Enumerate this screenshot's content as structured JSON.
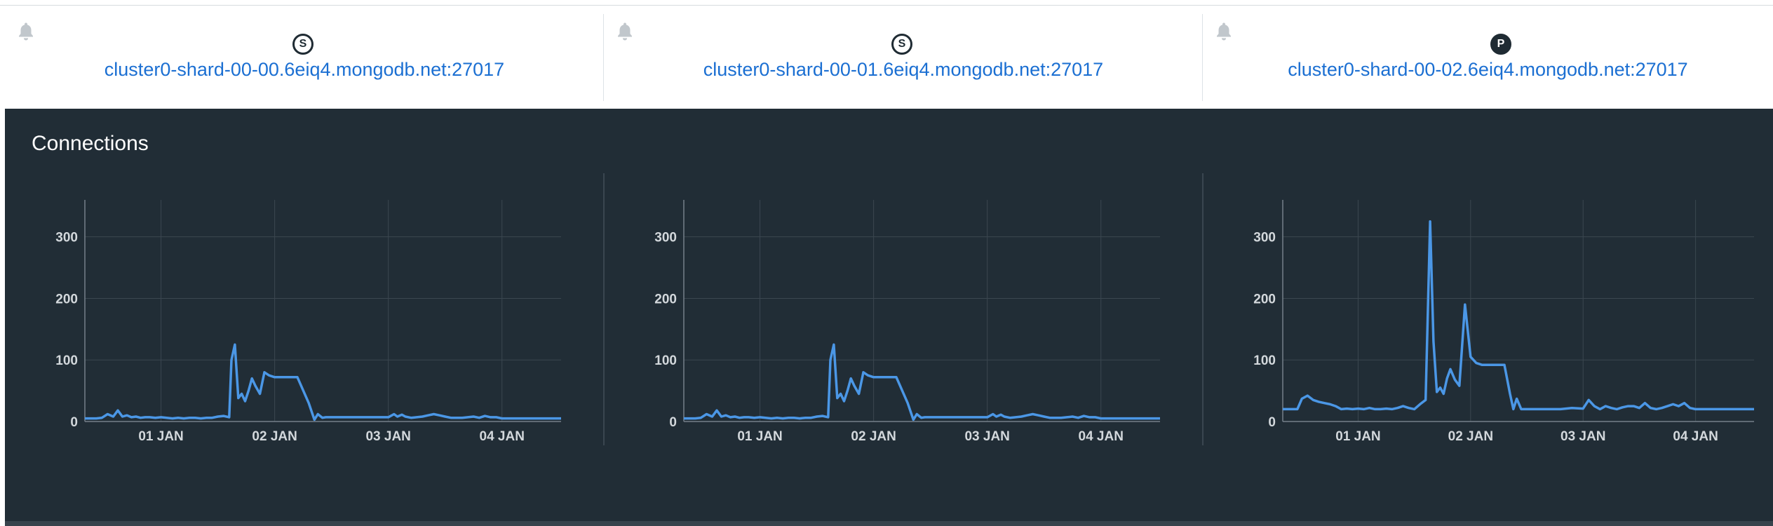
{
  "hosts": [
    {
      "role_letter": "S",
      "hostname": "cluster0-shard-00-00.6eiq4.mongodb.net:27017"
    },
    {
      "role_letter": "S",
      "hostname": "cluster0-shard-00-01.6eiq4.mongodb.net:27017"
    },
    {
      "role_letter": "P",
      "hostname": "cluster0-shard-00-02.6eiq4.mongodb.net:27017"
    }
  ],
  "section_title": "Connections",
  "colors": {
    "line": "#4b97e6",
    "background": "#212d36",
    "grid": "#3b4750",
    "link": "#1b6fd2"
  },
  "icons": {
    "alert": "bell-icon"
  },
  "chart_data": [
    {
      "type": "line",
      "title": "",
      "xlabel": "",
      "ylabel": "",
      "x_ticks": [
        "01 JAN",
        "02 JAN",
        "03 JAN",
        "04 JAN"
      ],
      "x_tick_positions": [
        1,
        2,
        3,
        4
      ],
      "xlim": [
        0.33,
        4.52
      ],
      "y_ticks": [
        0,
        100,
        200,
        300
      ],
      "ylim": [
        0,
        360
      ],
      "grid": true,
      "series": [
        {
          "x": [
            0.33,
            0.38,
            0.43,
            0.48,
            0.53,
            0.58,
            0.62,
            0.66,
            0.7,
            0.74,
            0.78,
            0.82,
            0.86,
            0.9,
            0.95,
            1.0,
            1.05,
            1.1,
            1.15,
            1.2,
            1.25,
            1.3,
            1.35,
            1.4,
            1.45,
            1.5,
            1.55,
            1.6,
            1.62,
            1.65,
            1.68,
            1.71,
            1.74,
            1.77,
            1.8,
            1.83,
            1.87,
            1.91,
            1.95,
            2.0,
            2.05,
            2.1,
            2.15,
            2.2,
            2.3,
            2.35,
            2.38,
            2.42,
            2.45,
            2.5,
            2.6,
            2.7,
            2.8,
            2.9,
            3.0,
            3.05,
            3.08,
            3.12,
            3.15,
            3.2,
            3.25,
            3.3,
            3.35,
            3.4,
            3.45,
            3.5,
            3.55,
            3.6,
            3.65,
            3.7,
            3.75,
            3.8,
            3.85,
            3.9,
            3.95,
            4.0,
            4.05,
            4.1,
            4.2,
            4.3,
            4.4,
            4.52
          ],
          "y": [
            5,
            5,
            5,
            6,
            12,
            8,
            18,
            8,
            10,
            7,
            8,
            6,
            7,
            7,
            6,
            7,
            6,
            5,
            6,
            5,
            6,
            6,
            5,
            6,
            6,
            8,
            9,
            7,
            100,
            125,
            38,
            45,
            33,
            50,
            70,
            58,
            45,
            80,
            75,
            72,
            72,
            72,
            72,
            72,
            30,
            3,
            12,
            6,
            7,
            7,
            7,
            7,
            7,
            7,
            7,
            12,
            8,
            11,
            8,
            6,
            7,
            8,
            10,
            12,
            10,
            8,
            6,
            6,
            6,
            7,
            8,
            6,
            9,
            7,
            7,
            5,
            5,
            5,
            5,
            5,
            5,
            5
          ]
        }
      ]
    },
    {
      "type": "line",
      "title": "",
      "xlabel": "",
      "ylabel": "",
      "x_ticks": [
        "01 JAN",
        "02 JAN",
        "03 JAN",
        "04 JAN"
      ],
      "x_tick_positions": [
        1,
        2,
        3,
        4
      ],
      "xlim": [
        0.33,
        4.52
      ],
      "y_ticks": [
        0,
        100,
        200,
        300
      ],
      "ylim": [
        0,
        360
      ],
      "grid": true,
      "series": [
        {
          "x": [
            0.33,
            0.38,
            0.43,
            0.48,
            0.53,
            0.58,
            0.62,
            0.66,
            0.7,
            0.74,
            0.78,
            0.82,
            0.86,
            0.9,
            0.95,
            1.0,
            1.05,
            1.1,
            1.15,
            1.2,
            1.25,
            1.3,
            1.35,
            1.4,
            1.45,
            1.5,
            1.55,
            1.6,
            1.62,
            1.65,
            1.68,
            1.71,
            1.74,
            1.77,
            1.8,
            1.83,
            1.87,
            1.91,
            1.95,
            2.0,
            2.05,
            2.1,
            2.15,
            2.2,
            2.3,
            2.35,
            2.38,
            2.42,
            2.45,
            2.5,
            2.6,
            2.7,
            2.8,
            2.9,
            3.0,
            3.05,
            3.08,
            3.12,
            3.15,
            3.2,
            3.25,
            3.3,
            3.35,
            3.4,
            3.45,
            3.5,
            3.55,
            3.6,
            3.65,
            3.7,
            3.75,
            3.8,
            3.85,
            3.9,
            3.95,
            4.0,
            4.05,
            4.1,
            4.2,
            4.3,
            4.4,
            4.52
          ],
          "y": [
            5,
            5,
            5,
            6,
            12,
            8,
            18,
            8,
            10,
            7,
            8,
            6,
            7,
            7,
            6,
            7,
            6,
            5,
            6,
            5,
            6,
            6,
            5,
            6,
            6,
            8,
            9,
            7,
            100,
            125,
            38,
            45,
            33,
            50,
            70,
            58,
            45,
            80,
            75,
            72,
            72,
            72,
            72,
            72,
            30,
            3,
            12,
            6,
            7,
            7,
            7,
            7,
            7,
            7,
            7,
            12,
            8,
            11,
            8,
            6,
            7,
            8,
            10,
            12,
            10,
            8,
            6,
            6,
            6,
            7,
            8,
            6,
            9,
            7,
            7,
            5,
            5,
            5,
            5,
            5,
            5,
            5
          ]
        }
      ]
    },
    {
      "type": "line",
      "title": "",
      "xlabel": "",
      "ylabel": "",
      "x_ticks": [
        "01 JAN",
        "02 JAN",
        "03 JAN",
        "04 JAN"
      ],
      "x_tick_positions": [
        1,
        2,
        3,
        4
      ],
      "xlim": [
        0.33,
        4.52
      ],
      "y_ticks": [
        0,
        100,
        200,
        300
      ],
      "ylim": [
        0,
        360
      ],
      "grid": true,
      "series": [
        {
          "x": [
            0.33,
            0.4,
            0.46,
            0.5,
            0.55,
            0.6,
            0.65,
            0.7,
            0.75,
            0.8,
            0.85,
            0.9,
            0.95,
            1.0,
            1.05,
            1.1,
            1.15,
            1.2,
            1.25,
            1.3,
            1.35,
            1.4,
            1.45,
            1.5,
            1.55,
            1.6,
            1.64,
            1.67,
            1.7,
            1.73,
            1.76,
            1.79,
            1.82,
            1.86,
            1.9,
            1.95,
            2.0,
            2.05,
            2.1,
            2.2,
            2.3,
            2.35,
            2.38,
            2.41,
            2.45,
            2.5,
            2.6,
            2.7,
            2.8,
            2.9,
            3.0,
            3.05,
            3.1,
            3.15,
            3.2,
            3.25,
            3.3,
            3.35,
            3.4,
            3.45,
            3.5,
            3.55,
            3.6,
            3.65,
            3.7,
            3.75,
            3.8,
            3.85,
            3.9,
            3.95,
            4.0,
            4.1,
            4.2,
            4.3,
            4.4,
            4.52
          ],
          "y": [
            20,
            20,
            20,
            37,
            42,
            35,
            32,
            30,
            28,
            25,
            20,
            21,
            20,
            21,
            20,
            22,
            20,
            20,
            21,
            20,
            22,
            25,
            22,
            20,
            28,
            35,
            325,
            130,
            48,
            55,
            45,
            70,
            85,
            68,
            58,
            190,
            105,
            95,
            92,
            92,
            92,
            45,
            20,
            37,
            20,
            20,
            20,
            20,
            20,
            22,
            21,
            35,
            25,
            20,
            25,
            22,
            20,
            23,
            25,
            25,
            22,
            30,
            22,
            20,
            22,
            25,
            28,
            25,
            30,
            22,
            20,
            20,
            20,
            20,
            20,
            20
          ]
        }
      ]
    }
  ]
}
